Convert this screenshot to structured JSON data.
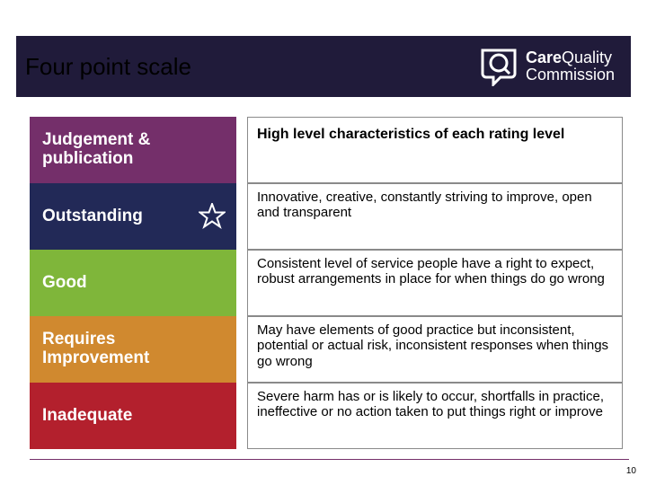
{
  "title": "Four point scale",
  "logo": {
    "line1_a": "Care",
    "line1_b": "Quality",
    "line2": "Commission"
  },
  "colors": {
    "titlebar": "#201b3a",
    "judgement": "#742f6a",
    "outstanding": "#222957",
    "good": "#7fb63a",
    "requires": "#d0892f",
    "inadequate": "#b3202d",
    "footer": "#742f6a"
  },
  "left": {
    "judgement": "Judgement & publication",
    "outstanding": "Outstanding",
    "good": "Good",
    "requires": "Requires Improvement",
    "inadequate": "Inadequate"
  },
  "right": {
    "header": "High level characteristics of each rating level",
    "outstanding": "Innovative, creative, constantly striving to improve, open and transparent",
    "good": "Consistent level of service people have a right to expect, robust arrangements in place for when things do go wrong",
    "requires": "May have elements of good practice but inconsistent, potential or actual risk, inconsistent responses when things go wrong",
    "inadequate": "Severe harm has or is likely to occur, shortfalls in practice, ineffective or no action taken to put things right or improve"
  },
  "page_number": "10",
  "layout": {
    "left_block_heights": {
      "judgement": 74,
      "outstanding": 74,
      "good": 74,
      "requires": 74,
      "inadequate": 74
    },
    "right_cell_heights": {
      "header": 74,
      "outstanding": 74,
      "good": 74,
      "requires": 74,
      "inadequate": 74
    }
  }
}
